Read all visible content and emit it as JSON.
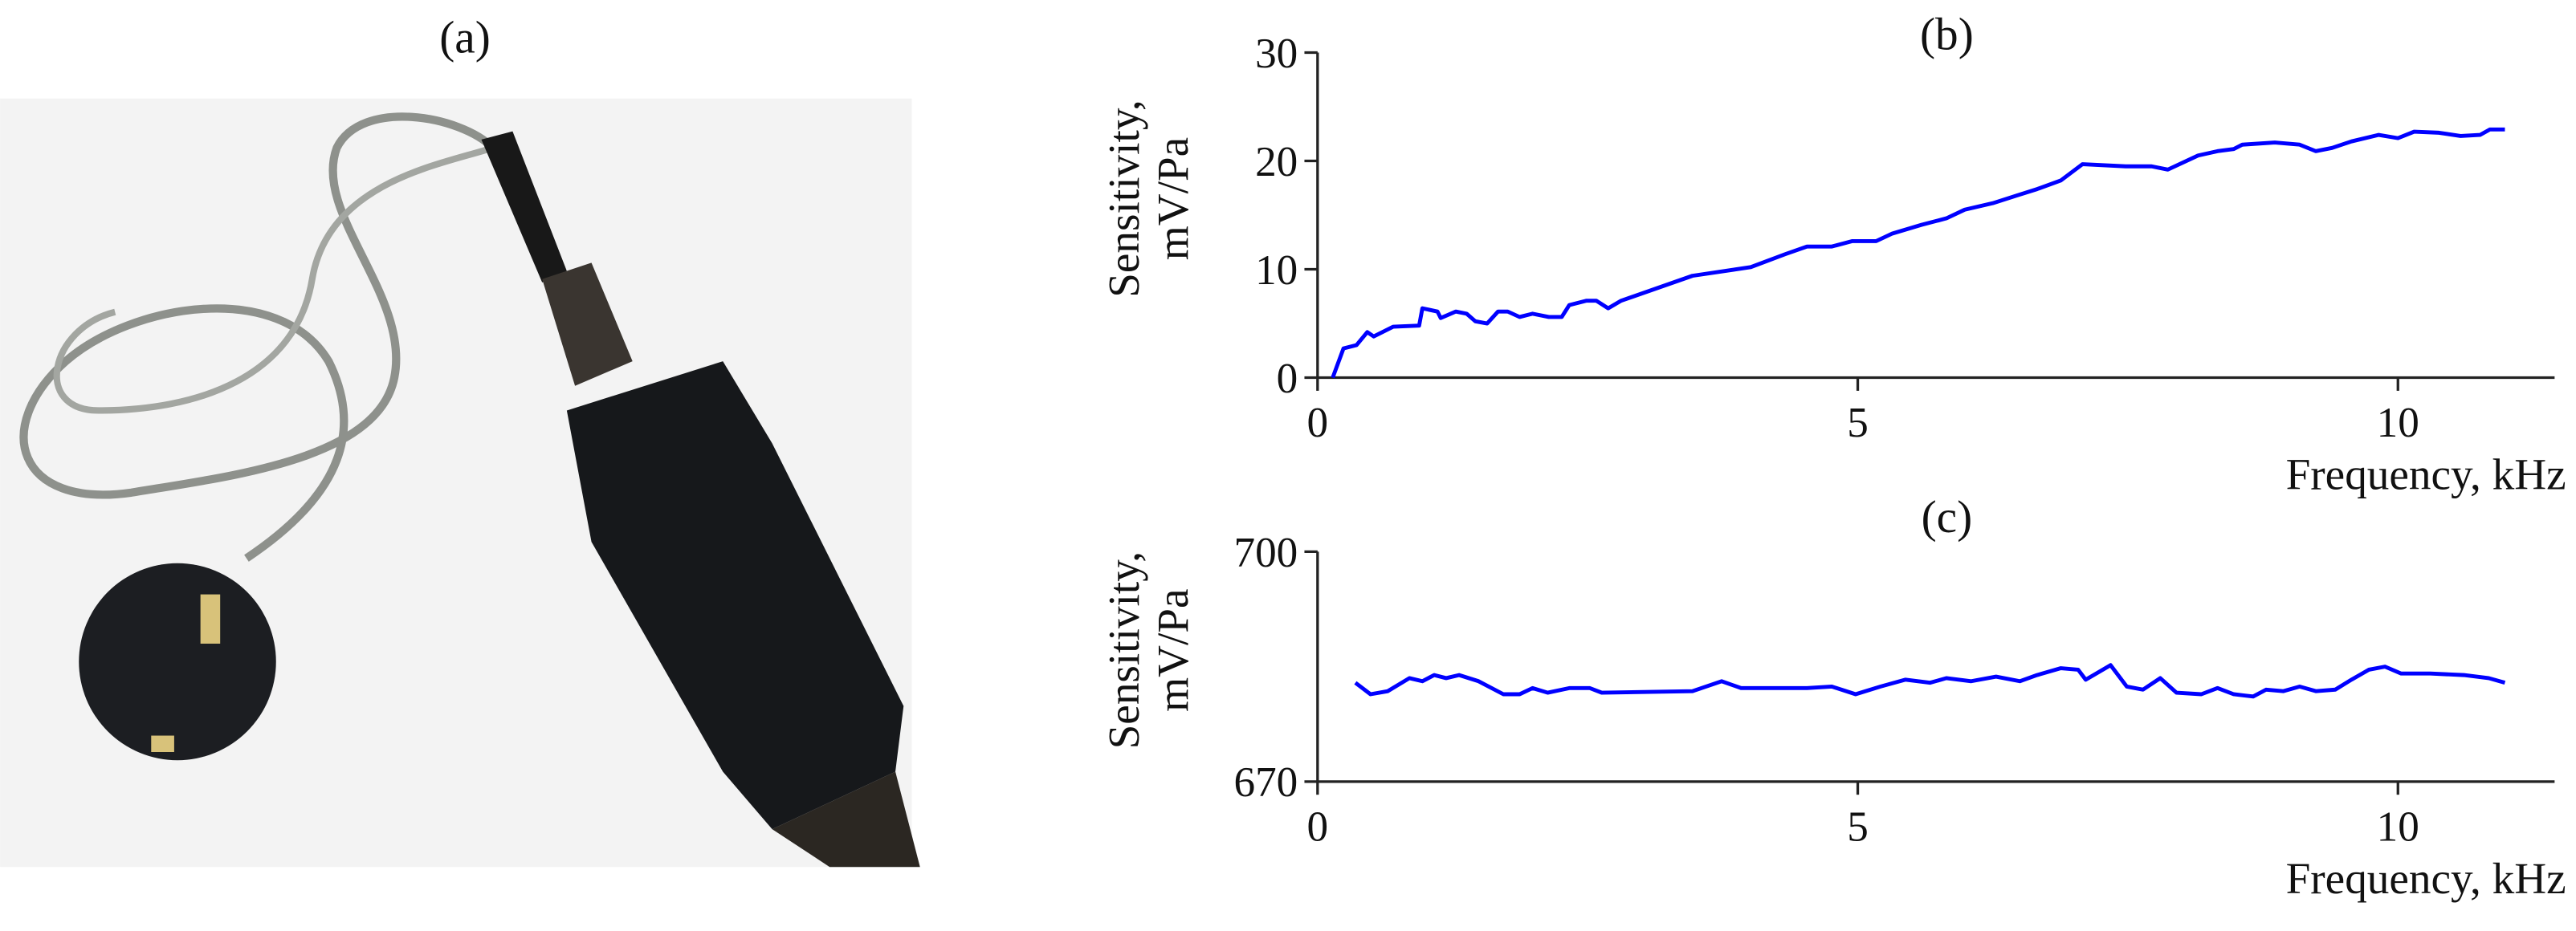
{
  "photo": {
    "label": "(a)"
  },
  "chart_data": [
    {
      "type": "line",
      "title": "(b)",
      "ylabel": [
        "Sensitivity,",
        "mV/Pa"
      ],
      "xlabel": "Frequency, kHz",
      "color": "#0000ff",
      "xlim": [
        0,
        11.45
      ],
      "xticks": [
        0,
        5,
        10
      ],
      "ylim": [
        0,
        30
      ],
      "yticks": [
        0,
        10,
        20,
        30
      ],
      "x": [
        0.14,
        0.24,
        0.36,
        0.46,
        0.52,
        0.7,
        0.94,
        0.97,
        1.11,
        1.14,
        1.28,
        1.38,
        1.46,
        1.57,
        1.67,
        1.76,
        1.87,
        1.99,
        2.14,
        2.26,
        2.33,
        2.49,
        2.58,
        2.69,
        2.81,
        3.47,
        4.01,
        4.33,
        4.53,
        4.76,
        4.95,
        5.17,
        5.32,
        5.59,
        5.82,
        5.99,
        6.25,
        6.47,
        6.66,
        6.88,
        7.08,
        7.48,
        7.72,
        7.87,
        8.15,
        8.33,
        8.48,
        8.56,
        8.86,
        9.09,
        9.24,
        9.39,
        9.57,
        9.82,
        10.0,
        10.15,
        10.38,
        10.58,
        10.76,
        10.85,
        10.99
      ],
      "values": [
        0,
        2.7,
        3,
        4.2,
        3.8,
        4.7,
        4.8,
        6.4,
        6.1,
        5.5,
        6.1,
        5.9,
        5.2,
        5.0,
        6.1,
        6.1,
        5.6,
        5.9,
        5.6,
        5.6,
        6.7,
        7.1,
        7.1,
        6.4,
        7.1,
        9.4,
        10.2,
        11.4,
        12.1,
        12.1,
        12.6,
        12.6,
        13.3,
        14.1,
        14.7,
        15.5,
        16.1,
        16.8,
        17.4,
        18.2,
        19.7,
        19.5,
        19.5,
        19.2,
        20.5,
        20.9,
        21.1,
        21.5,
        21.7,
        21.5,
        20.9,
        21.2,
        21.8,
        22.4,
        22.1,
        22.7,
        22.6,
        22.3,
        22.4,
        22.9,
        22.9
      ]
    },
    {
      "type": "line",
      "title": "(c)",
      "ylabel": [
        "Sensitivity,",
        "mV/Pa"
      ],
      "xlabel": "Frequency, kHz",
      "color": "#0000ff",
      "xlim": [
        0,
        11.45
      ],
      "xticks": [
        0,
        5,
        10
      ],
      "ylim": [
        670,
        700
      ],
      "yticks": [
        670,
        700
      ],
      "x": [
        0.35,
        0.49,
        0.65,
        0.85,
        0.97,
        1.08,
        1.19,
        1.31,
        1.49,
        1.72,
        1.87,
        1.99,
        2.13,
        2.33,
        2.52,
        2.63,
        3.47,
        3.74,
        3.92,
        4.53,
        4.76,
        4.98,
        5.21,
        5.44,
        5.67,
        5.82,
        6.05,
        6.28,
        6.5,
        6.66,
        6.88,
        7.04,
        7.11,
        7.34,
        7.49,
        7.64,
        7.8,
        7.95,
        8.18,
        8.33,
        8.48,
        8.66,
        8.78,
        8.94,
        9.09,
        9.24,
        9.42,
        9.57,
        9.73,
        9.88,
        10.03,
        10.3,
        10.61,
        10.84,
        10.99
      ],
      "values": [
        682.9,
        681.4,
        681.8,
        683.5,
        683.1,
        683.9,
        683.5,
        683.9,
        683.1,
        681.4,
        681.4,
        682.2,
        681.6,
        682.2,
        682.2,
        681.6,
        681.8,
        683.1,
        682.2,
        682.2,
        682.4,
        681.4,
        682.4,
        683.3,
        682.9,
        683.5,
        683.1,
        683.7,
        683.1,
        683.9,
        684.8,
        684.6,
        683.3,
        685.2,
        682.4,
        682.0,
        683.5,
        681.6,
        681.4,
        682.2,
        681.4,
        681.1,
        682.0,
        681.8,
        682.4,
        681.8,
        682.0,
        683.3,
        684.6,
        685.0,
        684.1,
        684.1,
        683.9,
        683.5,
        682.9
      ]
    }
  ]
}
